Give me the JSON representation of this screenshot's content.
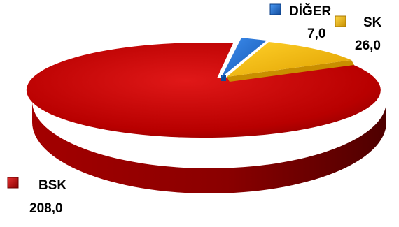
{
  "chart_data": {
    "type": "pie",
    "style": "3d-exploded",
    "series": [
      {
        "name": "BSK",
        "value": 208.0,
        "value_label": "208,0",
        "color": "#C00000"
      },
      {
        "name": "DİĞER",
        "value": 7.0,
        "value_label": "7,0",
        "color": "#1F6FD0"
      },
      {
        "name": "SK",
        "value": 26.0,
        "value_label": "26,0",
        "color": "#F5B800"
      }
    ],
    "title": "",
    "legend": "none"
  }
}
